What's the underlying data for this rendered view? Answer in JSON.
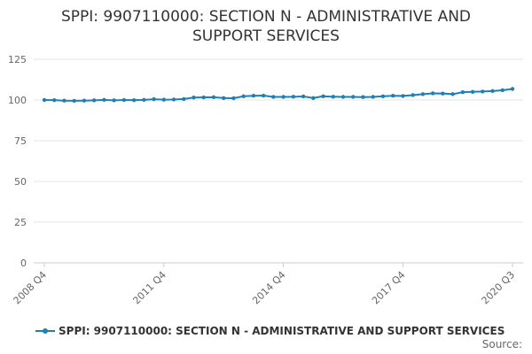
{
  "chart_data": {
    "type": "line",
    "title_lines": [
      "SPPI: 9907110000: SECTION N - ADMINISTRATIVE AND",
      "SUPPORT SERVICES"
    ],
    "x": [
      "2008 Q4",
      "2009 Q1",
      "2009 Q2",
      "2009 Q3",
      "2009 Q4",
      "2010 Q1",
      "2010 Q2",
      "2010 Q3",
      "2010 Q4",
      "2011 Q1",
      "2011 Q2",
      "2011 Q3",
      "2011 Q4",
      "2012 Q1",
      "2012 Q2",
      "2012 Q3",
      "2012 Q4",
      "2013 Q1",
      "2013 Q2",
      "2013 Q3",
      "2013 Q4",
      "2014 Q1",
      "2014 Q2",
      "2014 Q3",
      "2014 Q4",
      "2015 Q1",
      "2015 Q2",
      "2015 Q3",
      "2015 Q4",
      "2016 Q1",
      "2016 Q2",
      "2016 Q3",
      "2016 Q4",
      "2017 Q1",
      "2017 Q2",
      "2017 Q3",
      "2017 Q4",
      "2018 Q1",
      "2018 Q2",
      "2018 Q3",
      "2018 Q4",
      "2019 Q1",
      "2019 Q2",
      "2019 Q3",
      "2019 Q4",
      "2020 Q1",
      "2020 Q2",
      "2020 Q3"
    ],
    "x_tick_labels": [
      "2008 Q4",
      "2011 Q4",
      "2014 Q4",
      "2017 Q4",
      "2020 Q3"
    ],
    "series": [
      {
        "name": "SPPI: 9907110000: SECTION N - ADMINISTRATIVE AND SUPPORT SERVICES",
        "color": "#1f7fb3",
        "values": [
          100.0,
          99.9,
          99.6,
          99.5,
          99.6,
          99.8,
          100.1,
          99.8,
          100.0,
          99.9,
          100.1,
          100.5,
          100.2,
          100.3,
          100.6,
          101.5,
          101.6,
          101.7,
          101.2,
          101.1,
          102.3,
          102.6,
          102.7,
          101.9,
          101.9,
          102.0,
          102.2,
          101.2,
          102.3,
          102.0,
          101.9,
          101.9,
          101.8,
          101.9,
          102.3,
          102.6,
          102.5,
          103.0,
          103.6,
          104.1,
          104.0,
          103.6,
          104.8,
          105.0,
          105.2,
          105.5,
          106.0,
          106.8
        ]
      }
    ],
    "y_ticks": [
      0,
      25,
      50,
      75,
      100,
      125
    ],
    "ylim": [
      0,
      125
    ],
    "grid": "horizontal",
    "legend_position": "bottom",
    "xlabel": "",
    "ylabel": ""
  },
  "source_label": "Source:"
}
